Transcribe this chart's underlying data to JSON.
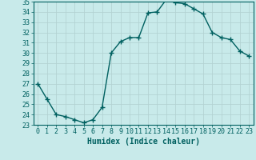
{
  "x": [
    0,
    1,
    2,
    3,
    4,
    5,
    6,
    7,
    8,
    9,
    10,
    11,
    12,
    13,
    14,
    15,
    16,
    17,
    18,
    19,
    20,
    21,
    22,
    23
  ],
  "y": [
    27,
    25.5,
    24,
    23.8,
    23.5,
    23.2,
    23.5,
    24.7,
    30.0,
    31.1,
    31.5,
    31.5,
    33.9,
    34.0,
    35.2,
    34.9,
    34.8,
    34.3,
    33.8,
    32.0,
    31.5,
    31.3,
    30.2,
    29.7
  ],
  "line_color": "#006060",
  "marker": "+",
  "marker_size": 4,
  "bg_color": "#c8eaea",
  "grid_color": "#b0d0d0",
  "xlabel": "Humidex (Indice chaleur)",
  "ylim": [
    23,
    35
  ],
  "xlim": [
    -0.5,
    23.5
  ],
  "yticks": [
    23,
    24,
    25,
    26,
    27,
    28,
    29,
    30,
    31,
    32,
    33,
    34,
    35
  ],
  "xticks": [
    0,
    1,
    2,
    3,
    4,
    5,
    6,
    7,
    8,
    9,
    10,
    11,
    12,
    13,
    14,
    15,
    16,
    17,
    18,
    19,
    20,
    21,
    22,
    23
  ],
  "tick_color": "#006060",
  "font_size_label": 7,
  "font_size_tick": 6,
  "line_width": 1.0
}
